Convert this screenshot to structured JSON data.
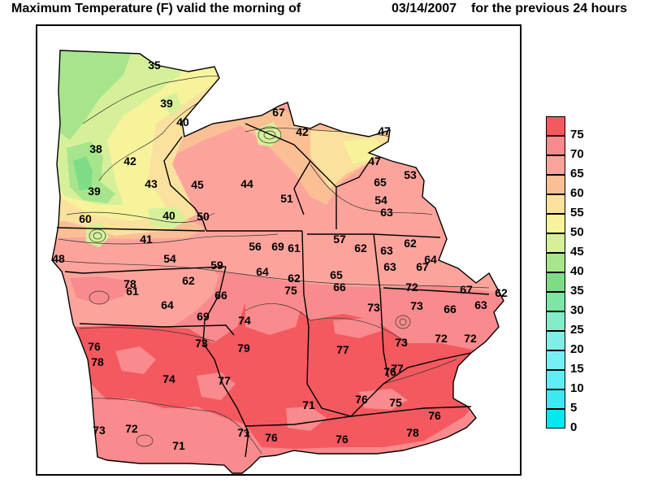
{
  "title": {
    "left": "Maximum Temperature (F) valid the morning of",
    "date": "03/14/2007",
    "right": "for the previous 24 hours"
  },
  "legend": {
    "items": [
      {
        "label": "75",
        "color": "#f4595f"
      },
      {
        "label": "70",
        "color": "#f98a8d"
      },
      {
        "label": "65",
        "color": "#fca49c"
      },
      {
        "label": "60",
        "color": "#fbbf95"
      },
      {
        "label": "55",
        "color": "#fae19d"
      },
      {
        "label": "50",
        "color": "#f6f39b"
      },
      {
        "label": "45",
        "color": "#d6f09a"
      },
      {
        "label": "40",
        "color": "#a6e58c"
      },
      {
        "label": "35",
        "color": "#7fdc86"
      },
      {
        "label": "30",
        "color": "#7de6a4"
      },
      {
        "label": "25",
        "color": "#82ecc8"
      },
      {
        "label": "20",
        "color": "#80eee6"
      },
      {
        "label": "15",
        "color": "#76eef5"
      },
      {
        "label": "10",
        "color": "#5fecf6"
      },
      {
        "label": "5",
        "color": "#3ae9f3"
      },
      {
        "label": "0",
        "color": "#00e8f0"
      }
    ]
  },
  "labels": [
    {
      "text": "35",
      "temp": 35
    },
    {
      "text": "39",
      "temp": 39
    },
    {
      "text": "40",
      "temp": 40
    },
    {
      "text": "38",
      "temp": 38
    },
    {
      "text": "42",
      "temp": 42
    },
    {
      "text": "39",
      "temp": 39
    },
    {
      "text": "43",
      "temp": 43
    },
    {
      "text": "40",
      "temp": 40
    },
    {
      "text": "45",
      "temp": 45
    },
    {
      "text": "44",
      "temp": 44
    },
    {
      "text": "50",
      "temp": 50
    },
    {
      "text": "60",
      "temp": 60
    },
    {
      "text": "41",
      "temp": 41
    },
    {
      "text": "48",
      "temp": 48
    },
    {
      "text": "54",
      "temp": 54
    },
    {
      "text": "67",
      "temp": 67
    },
    {
      "text": "42",
      "temp": 42
    },
    {
      "text": "47",
      "temp": 47
    },
    {
      "text": "47",
      "temp": 47
    },
    {
      "text": "53",
      "temp": 53
    },
    {
      "text": "65",
      "temp": 65
    },
    {
      "text": "54",
      "temp": 54
    },
    {
      "text": "63",
      "temp": 63
    },
    {
      "text": "51",
      "temp": 51
    },
    {
      "text": "57",
      "temp": 57
    },
    {
      "text": "62",
      "temp": 62
    },
    {
      "text": "63",
      "temp": 63
    },
    {
      "text": "62",
      "temp": 62
    },
    {
      "text": "56",
      "temp": 56
    },
    {
      "text": "69",
      "temp": 69
    },
    {
      "text": "61",
      "temp": 61
    },
    {
      "text": "59",
      "temp": 59
    },
    {
      "text": "64",
      "temp": 64
    },
    {
      "text": "62",
      "temp": 62
    },
    {
      "text": "63",
      "temp": 63
    },
    {
      "text": "67",
      "temp": 67
    },
    {
      "text": "64",
      "temp": 64
    },
    {
      "text": "78",
      "temp": 78
    },
    {
      "text": "61",
      "temp": 61
    },
    {
      "text": "62",
      "temp": 62
    },
    {
      "text": "66",
      "temp": 66
    },
    {
      "text": "75",
      "temp": 75
    },
    {
      "text": "65",
      "temp": 65
    },
    {
      "text": "66",
      "temp": 66
    },
    {
      "text": "72",
      "temp": 72
    },
    {
      "text": "67",
      "temp": 67
    },
    {
      "text": "62",
      "temp": 62
    },
    {
      "text": "64",
      "temp": 64
    },
    {
      "text": "73",
      "temp": 73
    },
    {
      "text": "73",
      "temp": 73
    },
    {
      "text": "66",
      "temp": 66
    },
    {
      "text": "63",
      "temp": 63
    },
    {
      "text": "69",
      "temp": 69
    },
    {
      "text": "74",
      "temp": 74
    },
    {
      "text": "73",
      "temp": 73
    },
    {
      "text": "79",
      "temp": 79
    },
    {
      "text": "77",
      "temp": 77
    },
    {
      "text": "73",
      "temp": 73
    },
    {
      "text": "72",
      "temp": 72
    },
    {
      "text": "72",
      "temp": 72
    },
    {
      "text": "76",
      "temp": 76
    },
    {
      "text": "78",
      "temp": 78
    },
    {
      "text": "74",
      "temp": 74
    },
    {
      "text": "77",
      "temp": 77
    },
    {
      "text": "76",
      "temp": 76
    },
    {
      "text": "77",
      "temp": 77
    },
    {
      "text": "71",
      "temp": 71
    },
    {
      "text": "76",
      "temp": 76
    },
    {
      "text": "75",
      "temp": 75
    },
    {
      "text": "76",
      "temp": 76
    },
    {
      "text": "73",
      "temp": 73
    },
    {
      "text": "72",
      "temp": 72
    },
    {
      "text": "71",
      "temp": 71
    },
    {
      "text": "71",
      "temp": 71
    },
    {
      "text": "76",
      "temp": 76
    },
    {
      "text": "76",
      "temp": 76
    },
    {
      "text": "78",
      "temp": 78
    }
  ]
}
